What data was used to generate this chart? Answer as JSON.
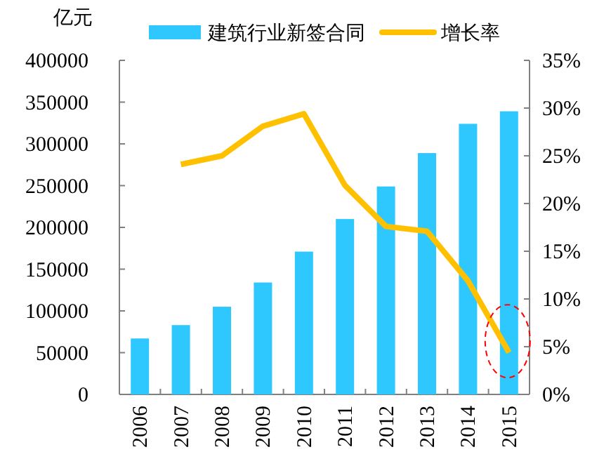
{
  "chart_data": {
    "type": "bar",
    "ylabel": "亿元",
    "categories": [
      "2006",
      "2007",
      "2008",
      "2009",
      "2010",
      "2011",
      "2012",
      "2013",
      "2014",
      "2015"
    ],
    "series": [
      {
        "name": "建筑行业新签合同",
        "color": "#2ec8ff",
        "values": [
          67000,
          83000,
          105000,
          134000,
          171000,
          210000,
          249000,
          289000,
          324000,
          339000
        ]
      },
      {
        "name": "增长率",
        "type": "line",
        "axis": "y2",
        "color": "#ffc000",
        "values": [
          null,
          24.1,
          25.0,
          28.1,
          29.4,
          21.9,
          17.6,
          17.1,
          11.9,
          4.4
        ]
      }
    ],
    "ylim": [
      0,
      400000
    ],
    "yticks": [
      0,
      50000,
      100000,
      150000,
      200000,
      250000,
      300000,
      350000,
      400000
    ],
    "y2lim": [
      0,
      35
    ],
    "y2ticks": [
      {
        "value": 0,
        "label": "0%"
      },
      {
        "value": 5,
        "label": "5%"
      },
      {
        "value": 10,
        "label": "10%"
      },
      {
        "value": 15,
        "label": "15%"
      },
      {
        "value": 20,
        "label": "20%"
      },
      {
        "value": 25,
        "label": "25%"
      },
      {
        "value": 30,
        "label": "30%"
      },
      {
        "value": 35,
        "label": "35%"
      }
    ],
    "legend": "top",
    "grid": false
  }
}
